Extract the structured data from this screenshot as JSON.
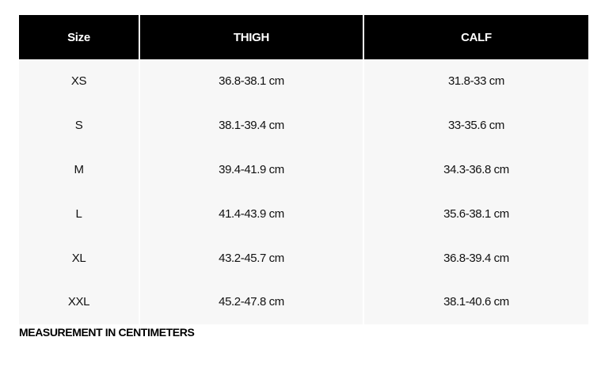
{
  "table": {
    "headers": [
      "Size",
      "THIGH",
      "CALF"
    ],
    "rows": [
      [
        "XS",
        "36.8-38.1 cm",
        "31.8-33 cm"
      ],
      [
        "S",
        "38.1-39.4 cm",
        "33-35.6 cm"
      ],
      [
        "M",
        "39.4-41.9 cm",
        "34.3-36.8 cm"
      ],
      [
        "L",
        "41.4-43.9 cm",
        "35.6-38.1 cm"
      ],
      [
        "XL",
        "43.2-45.7 cm",
        "36.8-39.4 cm"
      ],
      [
        "XXL",
        "45.2-47.8 cm",
        "38.1-40.6 cm"
      ]
    ]
  },
  "note": "MEASUREMENT IN CENTIMETERS",
  "colors": {
    "header_bg": "#000000",
    "header_text": "#ffffff",
    "cell_bg": "#f7f7f7"
  }
}
